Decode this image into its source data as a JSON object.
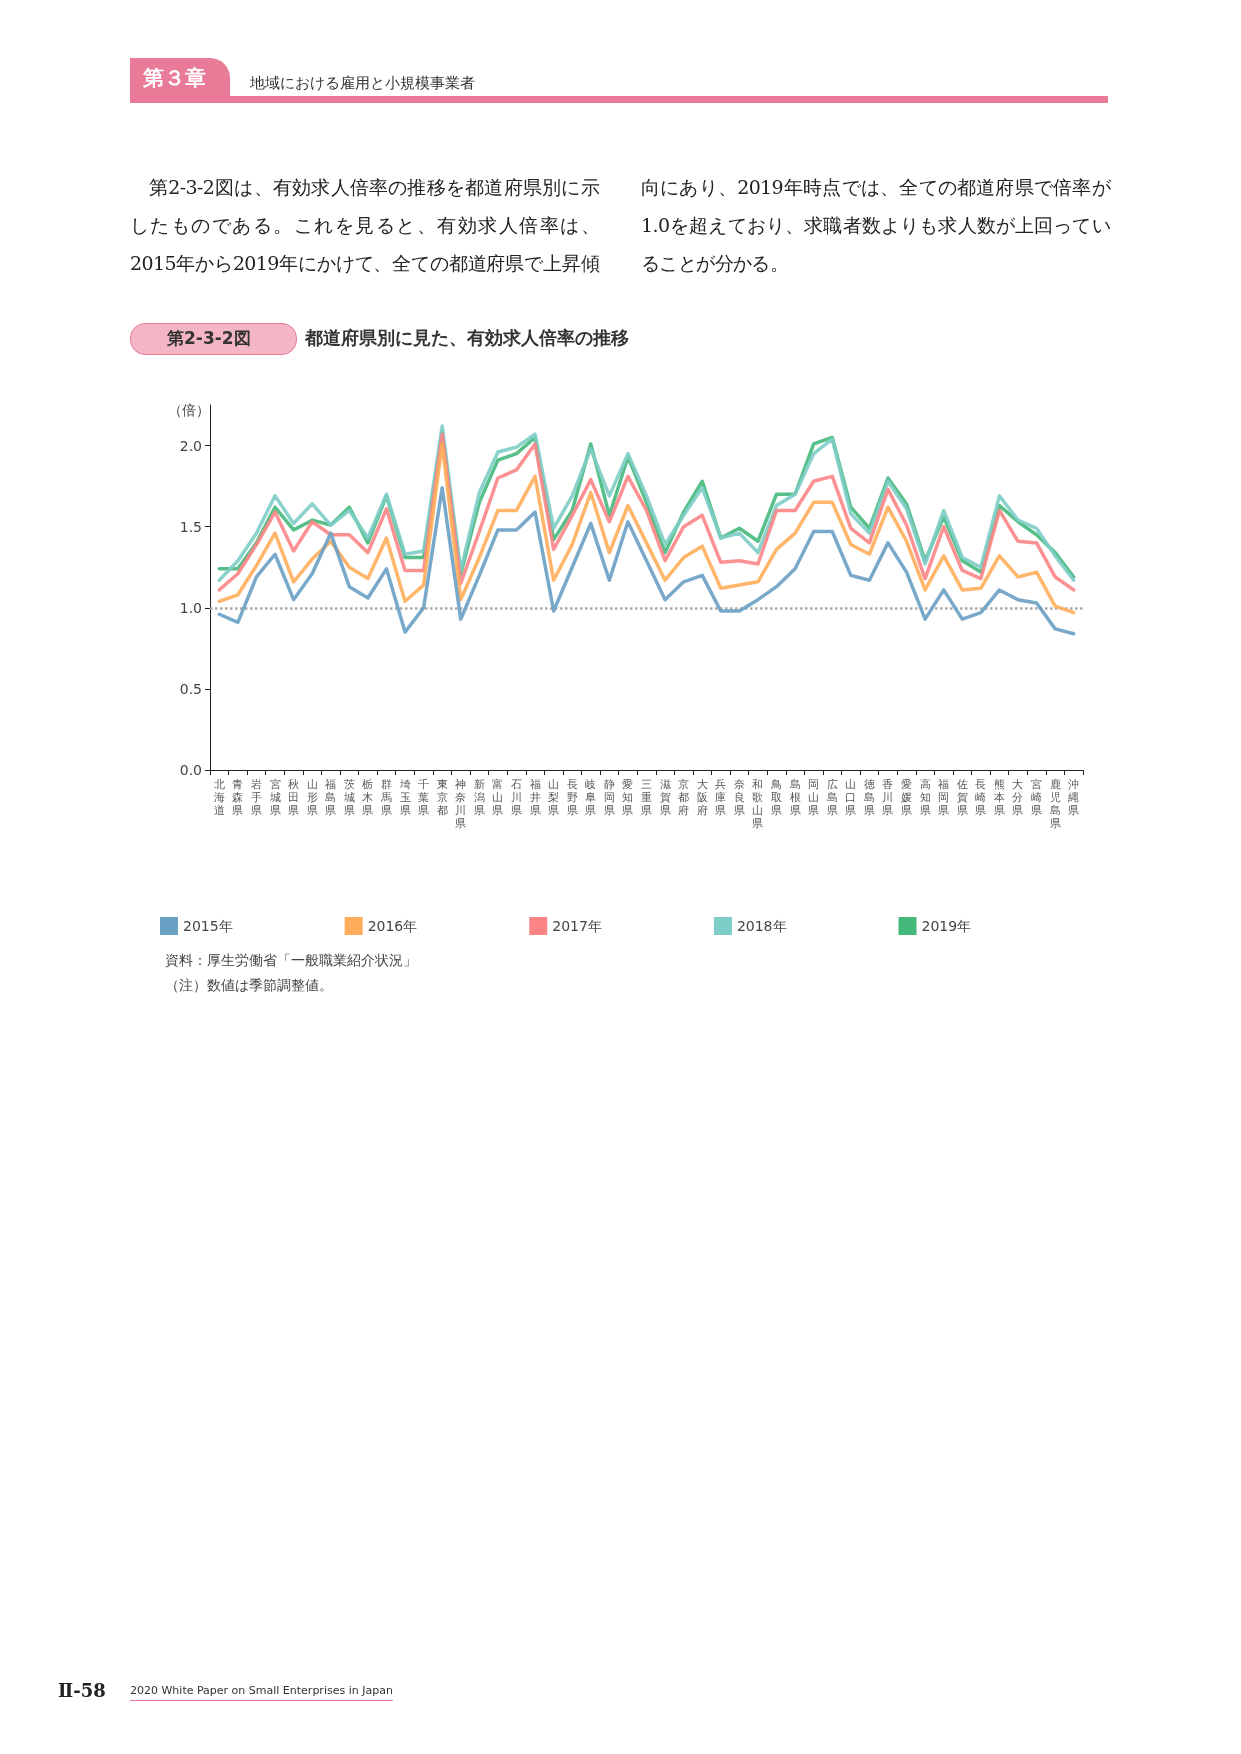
{
  "chart_data": {
    "type": "line",
    "title": "都道府県別に見た、有効求人倍率の推移",
    "subtitle": "第2-3-2図",
    "ylabel": "（倍）",
    "categories": [
      "北海道",
      "青森県",
      "岩手県",
      "宮城県",
      "秋田県",
      "山形県",
      "福島県",
      "茨城県",
      "栃木県",
      "群馬県",
      "埼玉県",
      "千葉県",
      "東京都",
      "神奈川県",
      "新潟県",
      "富山県",
      "石川県",
      "福井県",
      "山梨県",
      "長野県",
      "岐阜県",
      "静岡県",
      "愛知県",
      "三重県",
      "滋賀県",
      "京都府",
      "大阪府",
      "兵庫県",
      "奈良県",
      "和歌山県",
      "鳥取県",
      "島根県",
      "岡山県",
      "広島県",
      "山口県",
      "徳島県",
      "香川県",
      "愛媛県",
      "高知県",
      "福岡県",
      "佐賀県",
      "長崎県",
      "熊本県",
      "大分県",
      "宮崎県",
      "鹿児島県",
      "沖縄県"
    ],
    "series": [
      {
        "name": "2015年",
        "color": "#6aa0c4",
        "values": [
          0.96,
          0.91,
          1.19,
          1.33,
          1.05,
          1.21,
          1.46,
          1.13,
          1.06,
          1.24,
          0.85,
          1.0,
          1.74,
          0.93,
          1.2,
          1.48,
          1.48,
          1.59,
          0.98,
          1.25,
          1.52,
          1.17,
          1.53,
          1.29,
          1.05,
          1.16,
          1.2,
          0.98,
          0.98,
          1.05,
          1.13,
          1.24,
          1.47,
          1.47,
          1.2,
          1.17,
          1.4,
          1.22,
          0.93,
          1.11,
          0.93,
          0.97,
          1.11,
          1.05,
          1.03,
          0.87,
          0.84
        ]
      },
      {
        "name": "2016年",
        "color": "#ffad5a",
        "values": [
          1.04,
          1.08,
          1.26,
          1.46,
          1.16,
          1.3,
          1.41,
          1.25,
          1.18,
          1.43,
          1.04,
          1.14,
          2.01,
          1.05,
          1.31,
          1.6,
          1.6,
          1.81,
          1.17,
          1.39,
          1.71,
          1.34,
          1.63,
          1.4,
          1.17,
          1.31,
          1.38,
          1.12,
          1.14,
          1.16,
          1.36,
          1.46,
          1.65,
          1.65,
          1.39,
          1.33,
          1.62,
          1.41,
          1.11,
          1.32,
          1.11,
          1.12,
          1.32,
          1.19,
          1.22,
          1.01,
          0.97
        ]
      },
      {
        "name": "2017年",
        "color": "#fb8586",
        "values": [
          1.11,
          1.21,
          1.39,
          1.59,
          1.35,
          1.53,
          1.45,
          1.45,
          1.34,
          1.61,
          1.23,
          1.23,
          2.07,
          1.15,
          1.47,
          1.8,
          1.85,
          2.01,
          1.36,
          1.57,
          1.79,
          1.53,
          1.81,
          1.6,
          1.29,
          1.5,
          1.57,
          1.28,
          1.29,
          1.27,
          1.6,
          1.6,
          1.78,
          1.81,
          1.49,
          1.4,
          1.73,
          1.51,
          1.18,
          1.5,
          1.23,
          1.18,
          1.6,
          1.41,
          1.4,
          1.19,
          1.11
        ]
      },
      {
        "name": "2018年",
        "color": "#7ecdc8",
        "values": [
          1.17,
          1.29,
          1.46,
          1.69,
          1.52,
          1.64,
          1.51,
          1.6,
          1.43,
          1.7,
          1.33,
          1.35,
          2.12,
          1.23,
          1.71,
          1.96,
          1.99,
          2.07,
          1.49,
          1.69,
          1.98,
          1.69,
          1.95,
          1.69,
          1.39,
          1.57,
          1.74,
          1.43,
          1.46,
          1.34,
          1.63,
          1.7,
          1.95,
          2.04,
          1.58,
          1.46,
          1.78,
          1.61,
          1.27,
          1.6,
          1.31,
          1.25,
          1.69,
          1.54,
          1.49,
          1.32,
          1.17
        ]
      },
      {
        "name": "2019年",
        "color": "#45b97c",
        "values": [
          1.24,
          1.24,
          1.4,
          1.62,
          1.48,
          1.54,
          1.51,
          1.62,
          1.4,
          1.69,
          1.31,
          1.31,
          2.09,
          1.21,
          1.65,
          1.91,
          1.95,
          2.05,
          1.42,
          1.6,
          2.01,
          1.57,
          1.93,
          1.65,
          1.34,
          1.59,
          1.78,
          1.43,
          1.49,
          1.41,
          1.7,
          1.7,
          2.01,
          2.05,
          1.62,
          1.49,
          1.8,
          1.64,
          1.29,
          1.56,
          1.29,
          1.22,
          1.63,
          1.53,
          1.45,
          1.34,
          1.19
        ]
      }
    ],
    "ylim": [
      0,
      2.25
    ],
    "yticks": [
      {
        "value": 0,
        "label": "0.0"
      },
      {
        "value": 0.5,
        "label": "0.5"
      },
      {
        "value": 1,
        "label": "1.0"
      },
      {
        "value": 1.5,
        "label": "1.5"
      },
      {
        "value": 2,
        "label": "2.0"
      }
    ],
    "ref_lines": [
      {
        "axis": "y",
        "value": 1,
        "color": "#aaaaaa",
        "line_style": "dotted"
      }
    ],
    "grid": false,
    "legend": "bottom",
    "marker": "none",
    "line_style": "solid",
    "annotations": [
      "第３章",
      "地域における雇用と小規模事業者",
      "第2-3-2図は、有効求人倍率の推移を都道府県別に示したものである。これを見ると、有効求人倍率は、2015年から2019年にかけて、全ての都道府県で上昇傾向にあり、2019年時点では、全ての都道府県で倍率が1.0を超えており、求職者数よりも求人数が上回っていることが分かる。",
      "資料：厚生労働省「一般職業紹介状況」",
      "（注）数値は季節調整値。",
      "Ⅱ-58",
      "2020 White Paper on Small Enterprises in Japan"
    ]
  }
}
